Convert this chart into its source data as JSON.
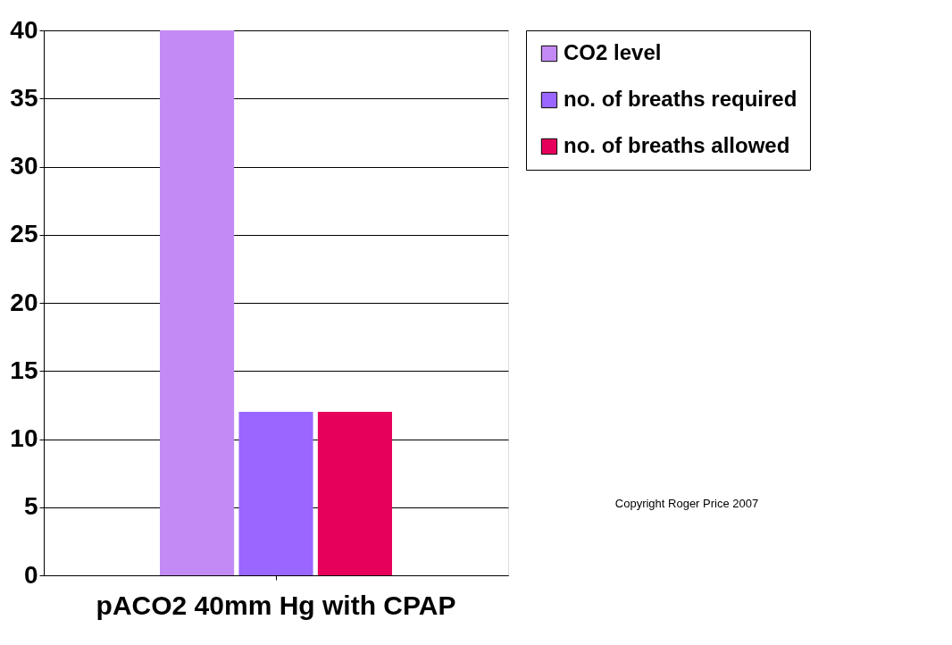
{
  "chart_data": {
    "type": "bar",
    "categories": [
      "pACO2 40mm Hg with CPAP"
    ],
    "series": [
      {
        "name": "CO2 level",
        "color": "#c38af5",
        "values": [
          40
        ]
      },
      {
        "name": "no. of breaths required",
        "color": "#9966ff",
        "values": [
          12
        ]
      },
      {
        "name": "no. of breaths allowed",
        "color": "#e6005c",
        "values": [
          12
        ]
      }
    ],
    "ylim": [
      0,
      40
    ],
    "yticks": [
      0,
      5,
      10,
      15,
      20,
      25,
      30,
      35,
      40
    ],
    "grid": "y",
    "legend": "right",
    "annotations": [
      "Copyright Roger Price 2007"
    ]
  }
}
